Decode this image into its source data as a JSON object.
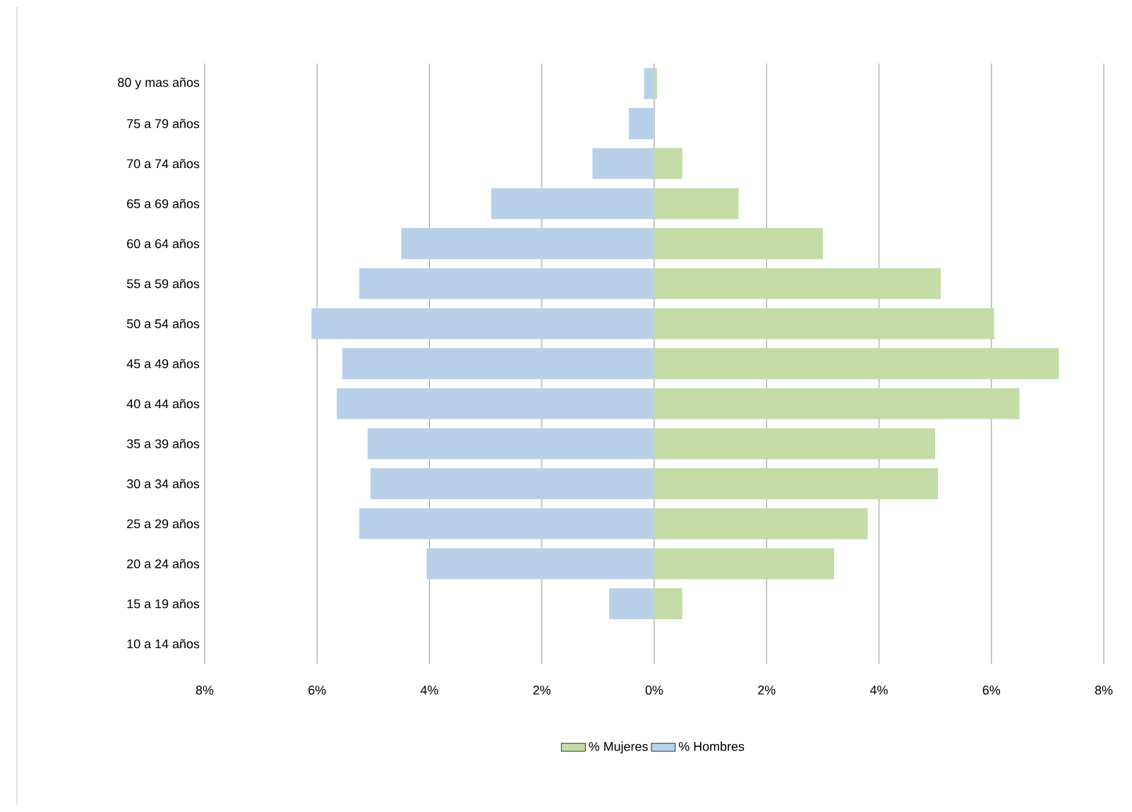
{
  "chart_data": {
    "type": "bar",
    "orientation": "horizontal",
    "categories": [
      "80 y mas años",
      "75 a 79 años",
      "70 a 74 años",
      "65 a 69 años",
      "60 a 64 años",
      "55 a 59 años",
      "50 a 54 años",
      "45 a 49 años",
      "40 a 44 años",
      "35 a 39 años",
      "30 a 34 años",
      "25 a 29 años",
      "20 a 24 años",
      "15 a 19 años",
      "10 a 14 años"
    ],
    "series": [
      {
        "name": "% Mujeres",
        "color": "#c3dca8",
        "values": [
          0.05,
          0,
          0.5,
          1.5,
          3.0,
          5.1,
          6.05,
          7.2,
          6.5,
          5.0,
          5.05,
          3.8,
          3.2,
          0.5,
          0
        ]
      },
      {
        "name": "% Hombres",
        "color": "#b8d0ea",
        "values": [
          -0.18,
          -0.45,
          -1.1,
          -2.9,
          -4.5,
          -5.25,
          -6.1,
          -5.55,
          -5.65,
          -5.1,
          -5.05,
          -5.25,
          -4.05,
          -0.8,
          0
        ]
      }
    ],
    "xlim": [
      -8,
      8
    ],
    "xticks": [
      {
        "value": -8,
        "label": "8%"
      },
      {
        "value": -6,
        "label": "6%"
      },
      {
        "value": -4,
        "label": "4%"
      },
      {
        "value": -2,
        "label": "2%"
      },
      {
        "value": 0,
        "label": "0%"
      },
      {
        "value": 2,
        "label": "2%"
      },
      {
        "value": 4,
        "label": "4%"
      },
      {
        "value": 6,
        "label": "6%"
      },
      {
        "value": 8,
        "label": "8%"
      }
    ],
    "stacked": true,
    "grid": "x",
    "legend": "bottom"
  }
}
